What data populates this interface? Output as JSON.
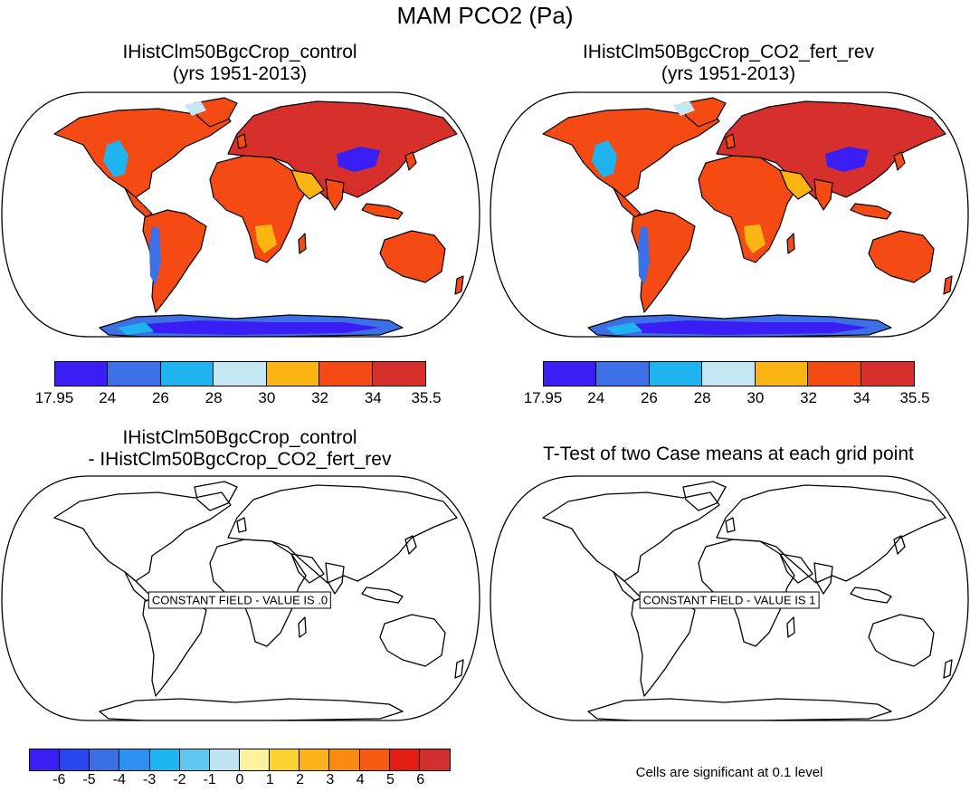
{
  "title": "MAM PCO2 (Pa)",
  "panels": [
    {
      "title_line1": "IHistClm50BgcCrop_control",
      "title_line2": "(yrs 1951-2013)",
      "type": "filled"
    },
    {
      "title_line1": "IHistClm50BgcCrop_CO2_fert_rev",
      "title_line2": "(yrs 1951-2013)",
      "type": "filled"
    },
    {
      "title_line1": "IHistClm50BgcCrop_control",
      "title_line2": "- IHistClm50BgcCrop_CO2_fert_rev",
      "type": "outline",
      "annotation": "CONSTANT FIELD - VALUE IS .0"
    },
    {
      "title_line1": "T-Test of two Case means at each grid point",
      "title_line2": "",
      "type": "outline",
      "annotation": "CONSTANT FIELD - VALUE IS 1"
    }
  ],
  "colorbar_top": {
    "colors": [
      "#3a1ef5",
      "#3d6fe6",
      "#1fb3f0",
      "#c5e6f3",
      "#fbb512",
      "#f64a15",
      "#d7302c"
    ],
    "labels": [
      "17.95",
      "24",
      "26",
      "28",
      "30",
      "32",
      "34",
      "35.5"
    ]
  },
  "colorbar_diff": {
    "colors": [
      "#3a1ef5",
      "#2848ee",
      "#3a6fe6",
      "#2d8ff2",
      "#1db6f2",
      "#5ec8f0",
      "#bfe3f2",
      "#fdf1a0",
      "#fcd031",
      "#fbb117",
      "#f98a12",
      "#f65a13",
      "#e51c12",
      "#d32e2e"
    ],
    "labels": [
      "-6",
      "-5",
      "-4",
      "-3",
      "-2",
      "-1",
      "0",
      "1",
      "2",
      "3",
      "4",
      "5",
      "6"
    ]
  },
  "footnote": "Cells are significant at 0.1 level"
}
